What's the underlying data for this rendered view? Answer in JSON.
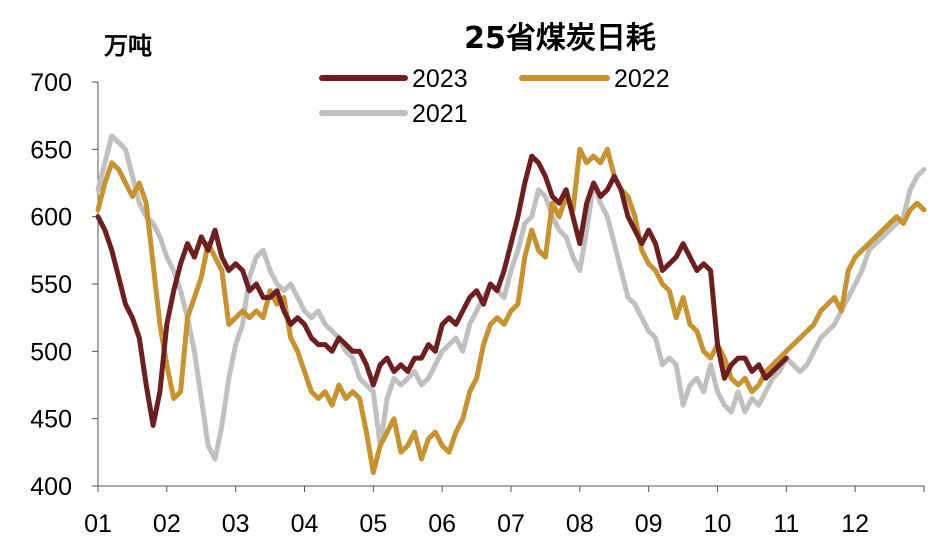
{
  "chart_data": {
    "type": "line",
    "title": "25省煤炭日耗",
    "ylabel": "万吨",
    "xlabel": "",
    "ylim": [
      400,
      700
    ],
    "yticks": [
      400,
      450,
      500,
      550,
      600,
      650,
      700
    ],
    "categories": [
      "01",
      "02",
      "03",
      "04",
      "05",
      "06",
      "07",
      "08",
      "09",
      "10",
      "11",
      "12"
    ],
    "legend_position": "top-center",
    "grid": false,
    "series": [
      {
        "name": "2023",
        "color": "#6e1e1e",
        "x": [
          1.0,
          1.1,
          1.2,
          1.3,
          1.4,
          1.5,
          1.6,
          1.7,
          1.8,
          1.9,
          2.0,
          2.1,
          2.2,
          2.3,
          2.4,
          2.5,
          2.6,
          2.7,
          2.8,
          2.9,
          3.0,
          3.1,
          3.2,
          3.3,
          3.4,
          3.5,
          3.6,
          3.7,
          3.8,
          3.9,
          4.0,
          4.1,
          4.2,
          4.3,
          4.4,
          4.5,
          4.6,
          4.7,
          4.8,
          4.9,
          5.0,
          5.1,
          5.2,
          5.3,
          5.4,
          5.5,
          5.6,
          5.7,
          5.8,
          5.9,
          6.0,
          6.1,
          6.2,
          6.3,
          6.4,
          6.5,
          6.6,
          6.7,
          6.8,
          6.9,
          7.0,
          7.1,
          7.2,
          7.3,
          7.4,
          7.5,
          7.6,
          7.7,
          7.8,
          7.9,
          8.0,
          8.1,
          8.2,
          8.3,
          8.4,
          8.5,
          8.6,
          8.7,
          8.8,
          8.9,
          9.0,
          9.1,
          9.2,
          9.3,
          9.4,
          9.5,
          9.6,
          9.7,
          9.8,
          9.9,
          10.0,
          10.1,
          10.2,
          10.3,
          10.4,
          10.5,
          10.6,
          10.7,
          10.8,
          10.9,
          11.0
        ],
        "values": [
          600,
          590,
          575,
          555,
          535,
          525,
          510,
          475,
          445,
          470,
          520,
          545,
          565,
          580,
          570,
          585,
          575,
          590,
          570,
          560,
          565,
          560,
          545,
          550,
          540,
          540,
          545,
          530,
          520,
          525,
          520,
          510,
          505,
          505,
          500,
          510,
          505,
          500,
          500,
          490,
          475,
          490,
          495,
          485,
          490,
          485,
          495,
          495,
          505,
          500,
          520,
          525,
          520,
          530,
          540,
          545,
          535,
          550,
          545,
          560,
          580,
          600,
          625,
          645,
          640,
          630,
          615,
          610,
          620,
          600,
          580,
          610,
          625,
          615,
          620,
          630,
          620,
          600,
          590,
          580,
          590,
          580,
          560,
          565,
          570,
          580,
          570,
          560,
          565,
          560,
          505,
          480,
          490,
          495,
          495,
          485,
          490,
          480,
          485,
          490,
          495
        ]
      },
      {
        "name": "2022",
        "color": "#c8922e",
        "x": [
          1.0,
          1.1,
          1.2,
          1.3,
          1.4,
          1.5,
          1.6,
          1.7,
          1.8,
          1.9,
          2.0,
          2.1,
          2.2,
          2.3,
          2.4,
          2.5,
          2.6,
          2.7,
          2.8,
          2.9,
          3.0,
          3.1,
          3.2,
          3.3,
          3.4,
          3.5,
          3.6,
          3.7,
          3.8,
          3.9,
          4.0,
          4.1,
          4.2,
          4.3,
          4.4,
          4.5,
          4.6,
          4.7,
          4.8,
          4.9,
          5.0,
          5.1,
          5.2,
          5.3,
          5.4,
          5.5,
          5.6,
          5.7,
          5.8,
          5.9,
          6.0,
          6.1,
          6.2,
          6.3,
          6.4,
          6.5,
          6.6,
          6.7,
          6.8,
          6.9,
          7.0,
          7.1,
          7.2,
          7.3,
          7.4,
          7.5,
          7.6,
          7.7,
          7.8,
          7.9,
          8.0,
          8.1,
          8.2,
          8.3,
          8.4,
          8.5,
          8.6,
          8.7,
          8.8,
          8.9,
          9.0,
          9.1,
          9.2,
          9.3,
          9.4,
          9.5,
          9.6,
          9.7,
          9.8,
          9.9,
          10.0,
          10.1,
          10.2,
          10.3,
          10.4,
          10.5,
          10.6,
          10.7,
          10.8,
          10.9,
          11.0,
          11.1,
          11.2,
          11.3,
          11.4,
          11.5,
          11.6,
          11.7,
          11.8,
          11.9,
          12.0,
          12.1,
          12.2,
          12.3,
          12.4,
          12.5,
          12.6,
          12.7,
          12.8,
          12.9,
          13.0
        ],
        "values": [
          605,
          625,
          640,
          635,
          625,
          615,
          625,
          610,
          565,
          520,
          490,
          465,
          470,
          525,
          540,
          555,
          580,
          570,
          560,
          520,
          525,
          530,
          525,
          530,
          525,
          545,
          535,
          540,
          510,
          500,
          485,
          470,
          465,
          470,
          460,
          475,
          465,
          470,
          465,
          440,
          410,
          430,
          440,
          450,
          425,
          430,
          440,
          420,
          435,
          440,
          430,
          425,
          440,
          450,
          470,
          480,
          505,
          520,
          525,
          520,
          530,
          535,
          570,
          590,
          575,
          570,
          610,
          600,
          615,
          605,
          650,
          640,
          645,
          640,
          650,
          630,
          620,
          615,
          600,
          575,
          565,
          560,
          550,
          545,
          525,
          540,
          520,
          515,
          500,
          495,
          505,
          495,
          480,
          475,
          480,
          470,
          475,
          485,
          490,
          495,
          500,
          505,
          510,
          515,
          520,
          530,
          535,
          540,
          530,
          560,
          570,
          575,
          580,
          585,
          590,
          595,
          600,
          595,
          605,
          610,
          605
        ]
      },
      {
        "name": "2021",
        "color": "#c0c0c0",
        "x": [
          1.0,
          1.1,
          1.2,
          1.3,
          1.4,
          1.5,
          1.6,
          1.7,
          1.8,
          1.9,
          2.0,
          2.1,
          2.2,
          2.3,
          2.4,
          2.5,
          2.6,
          2.7,
          2.8,
          2.9,
          3.0,
          3.1,
          3.2,
          3.3,
          3.4,
          3.5,
          3.6,
          3.7,
          3.8,
          3.9,
          4.0,
          4.1,
          4.2,
          4.3,
          4.4,
          4.5,
          4.6,
          4.7,
          4.8,
          4.9,
          5.0,
          5.1,
          5.2,
          5.3,
          5.4,
          5.5,
          5.6,
          5.7,
          5.8,
          5.9,
          6.0,
          6.1,
          6.2,
          6.3,
          6.4,
          6.5,
          6.6,
          6.7,
          6.8,
          6.9,
          7.0,
          7.1,
          7.2,
          7.3,
          7.4,
          7.5,
          7.6,
          7.7,
          7.8,
          7.9,
          8.0,
          8.1,
          8.2,
          8.3,
          8.4,
          8.5,
          8.6,
          8.7,
          8.8,
          8.9,
          9.0,
          9.1,
          9.2,
          9.3,
          9.4,
          9.5,
          9.6,
          9.7,
          9.8,
          9.9,
          10.0,
          10.1,
          10.2,
          10.3,
          10.4,
          10.5,
          10.6,
          10.7,
          10.8,
          10.9,
          11.0,
          11.1,
          11.2,
          11.3,
          11.4,
          11.5,
          11.6,
          11.7,
          11.8,
          11.9,
          12.0,
          12.1,
          12.2,
          12.3,
          12.4,
          12.5,
          12.6,
          12.7,
          12.8,
          12.9,
          13.0
        ],
        "values": [
          620,
          640,
          660,
          655,
          650,
          630,
          610,
          600,
          595,
          585,
          570,
          560,
          545,
          525,
          500,
          465,
          430,
          420,
          445,
          480,
          505,
          520,
          555,
          570,
          575,
          560,
          550,
          545,
          550,
          540,
          530,
          525,
          530,
          520,
          515,
          510,
          500,
          495,
          480,
          475,
          470,
          430,
          465,
          480,
          475,
          480,
          485,
          475,
          480,
          490,
          500,
          505,
          510,
          500,
          520,
          530,
          540,
          550,
          545,
          540,
          560,
          575,
          595,
          600,
          620,
          615,
          600,
          590,
          585,
          570,
          560,
          590,
          625,
          610,
          600,
          580,
          560,
          540,
          535,
          525,
          515,
          510,
          490,
          495,
          490,
          460,
          475,
          480,
          470,
          490,
          470,
          460,
          455,
          470,
          455,
          465,
          460,
          470,
          480,
          485,
          495,
          490,
          485,
          490,
          500,
          510,
          515,
          520,
          530,
          540,
          550,
          560,
          575,
          580,
          585,
          590,
          595,
          600,
          620,
          630,
          635
        ]
      }
    ]
  }
}
